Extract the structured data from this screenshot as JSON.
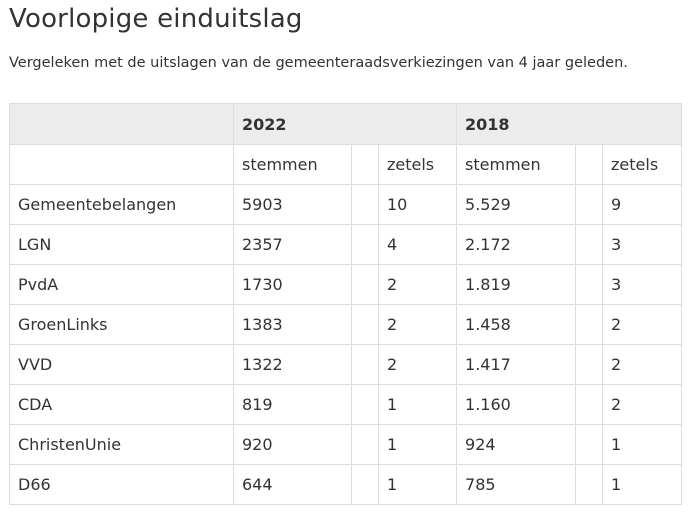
{
  "page": {
    "title": "Voorlopige einduitslag",
    "intro": "Vergeleken met de uitslagen van de gemeenteraadsverkiezingen van 4 jaar geleden."
  },
  "table": {
    "years": [
      "2022",
      "2018"
    ],
    "subheaders": {
      "votes": "stemmen",
      "seats": "zetels"
    },
    "rows": [
      {
        "party": "Gemeentebelangen",
        "votes_2022": "5903",
        "seats_2022": "10",
        "votes_2018": "5.529",
        "seats_2018": "9"
      },
      {
        "party": "LGN",
        "votes_2022": "2357",
        "seats_2022": "4",
        "votes_2018": "2.172",
        "seats_2018": "3"
      },
      {
        "party": "PvdA",
        "votes_2022": "1730",
        "seats_2022": "2",
        "votes_2018": "1.819",
        "seats_2018": "3"
      },
      {
        "party": "GroenLinks",
        "votes_2022": "1383",
        "seats_2022": "2",
        "votes_2018": "1.458",
        "seats_2018": "2"
      },
      {
        "party": "VVD",
        "votes_2022": "1322",
        "seats_2022": "2",
        "votes_2018": "1.417",
        "seats_2018": "2"
      },
      {
        "party": "CDA",
        "votes_2022": "819",
        "seats_2022": "1",
        "votes_2018": "1.160",
        "seats_2018": "2"
      },
      {
        "party": "ChristenUnie",
        "votes_2022": "920",
        "seats_2022": "1",
        "votes_2018": "924",
        "seats_2018": "1"
      },
      {
        "party": "D66",
        "votes_2022": "644",
        "seats_2022": "1",
        "votes_2018": "785",
        "seats_2018": "1"
      }
    ]
  }
}
